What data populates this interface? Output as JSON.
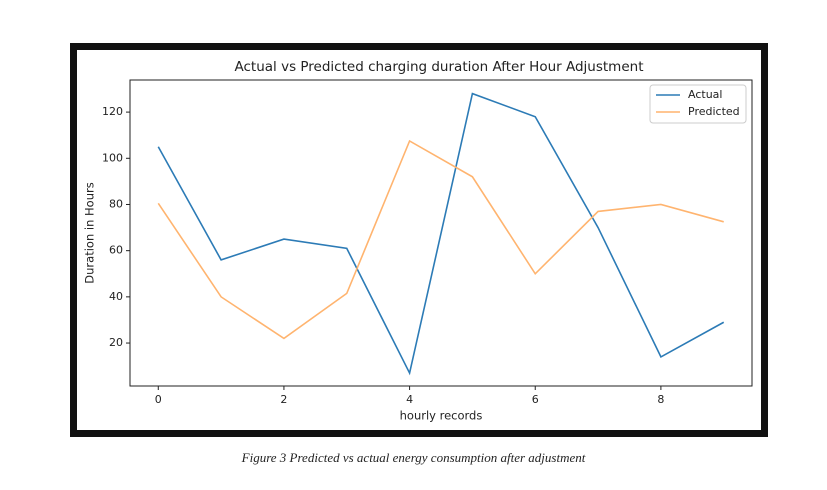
{
  "chart_data": {
    "type": "line",
    "title": "Actual vs Predicted charging duration After Hour Adjustment",
    "xlabel": "hourly records",
    "ylabel": "Duration in Hours",
    "x": [
      0,
      1,
      2,
      3,
      4,
      5,
      6,
      7,
      8,
      9
    ],
    "series": [
      {
        "name": "Actual",
        "color": "#2c7bb6",
        "values": [
          105,
          56,
          65,
          61,
          7,
          128,
          118,
          70,
          14,
          29
        ]
      },
      {
        "name": "Predicted",
        "color": "#ffb46f",
        "values": [
          80.5,
          40,
          22,
          41.5,
          107.5,
          92,
          50,
          77,
          80,
          72.5
        ]
      }
    ],
    "xlim": [
      -0.45,
      9.45
    ],
    "ylim": [
      1.4,
      133.9
    ],
    "xticks": [
      0,
      2,
      4,
      6,
      8
    ],
    "yticks": [
      20,
      40,
      60,
      80,
      100,
      120
    ],
    "legend": "upper right"
  },
  "caption": "Figure 3 Predicted vs actual energy consumption after adjustment"
}
